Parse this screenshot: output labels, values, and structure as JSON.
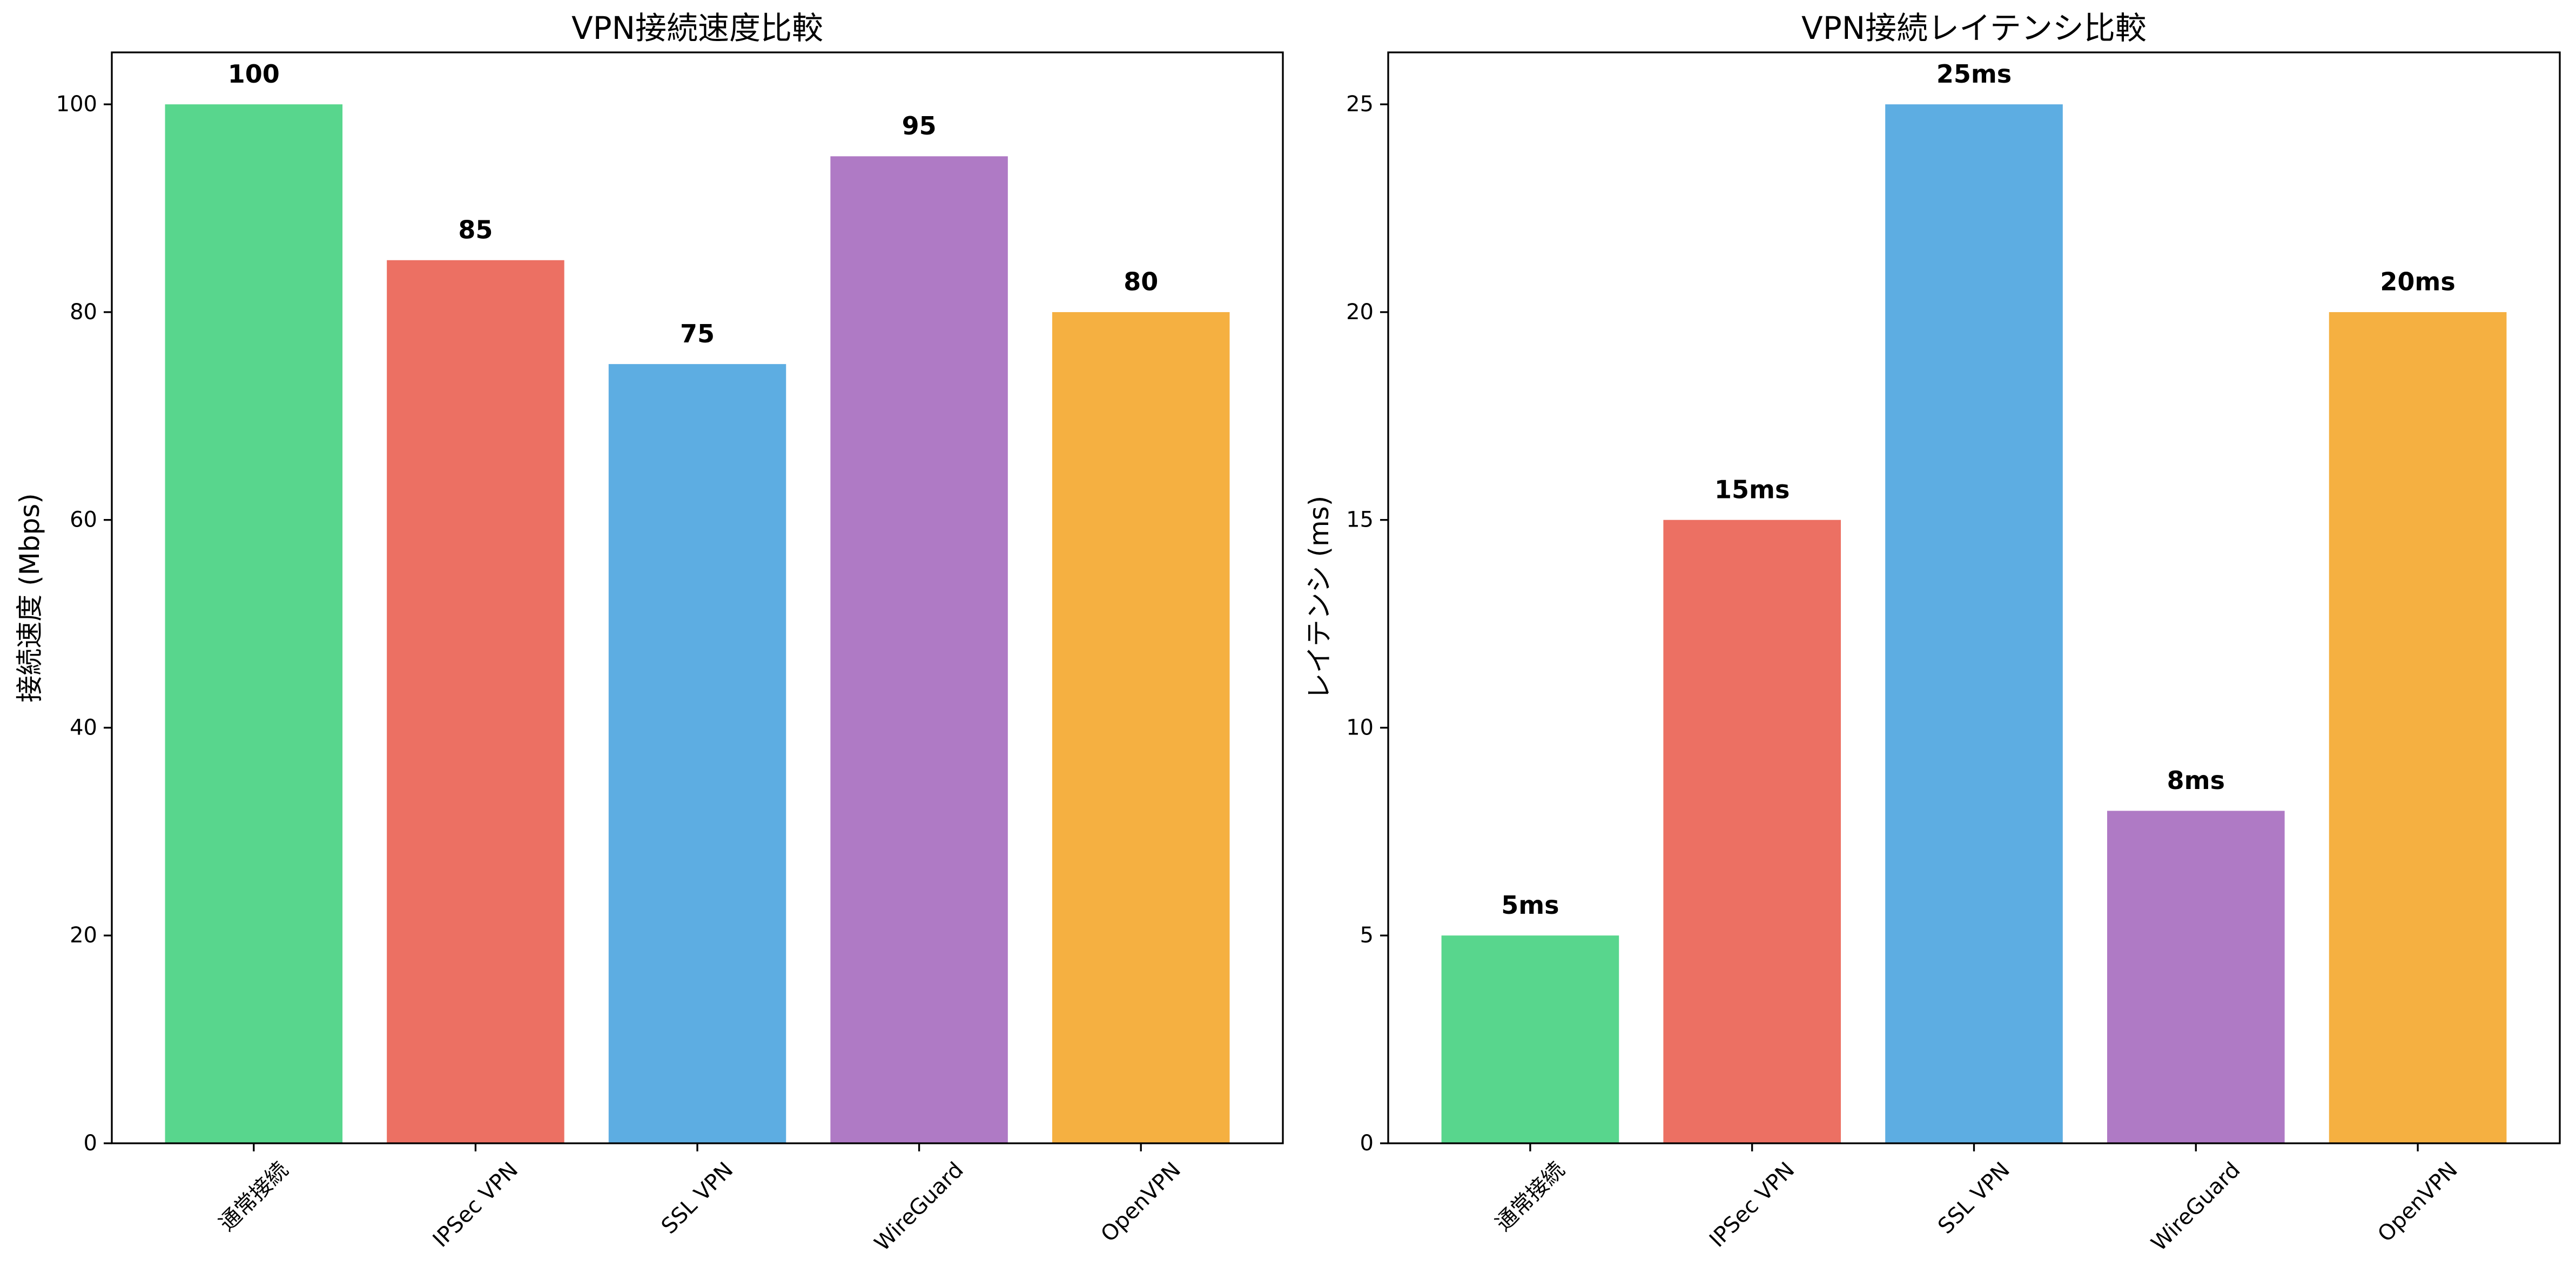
{
  "chart_data": [
    {
      "type": "bar",
      "title": "VPN接続速度比較",
      "ylabel": "接続速度 (Mbps)",
      "categories": [
        "通常接続",
        "IPSec VPN",
        "SSL VPN",
        "WireGuard",
        "OpenVPN"
      ],
      "values": [
        100,
        85,
        75,
        95,
        80
      ],
      "value_labels": [
        "100",
        "85",
        "75",
        "95",
        "80"
      ],
      "colors": [
        "#58d68d",
        "#ec7063",
        "#5dade2",
        "#af7ac5",
        "#f5b041"
      ],
      "ylim": [
        0,
        105
      ],
      "yticks": [
        0,
        20,
        40,
        60,
        80,
        100
      ],
      "grid": false
    },
    {
      "type": "bar",
      "title": "VPN接続レイテンシ比較",
      "ylabel": "レイテンシ (ms)",
      "categories": [
        "通常接続",
        "IPSec VPN",
        "SSL VPN",
        "WireGuard",
        "OpenVPN"
      ],
      "values": [
        5,
        15,
        25,
        8,
        20
      ],
      "value_labels": [
        "5ms",
        "15ms",
        "25ms",
        "8ms",
        "20ms"
      ],
      "colors": [
        "#58d68d",
        "#ec7063",
        "#5dade2",
        "#af7ac5",
        "#f5b041"
      ],
      "ylim": [
        0,
        26.25
      ],
      "yticks": [
        0,
        5,
        10,
        15,
        20,
        25
      ],
      "grid": false
    }
  ]
}
